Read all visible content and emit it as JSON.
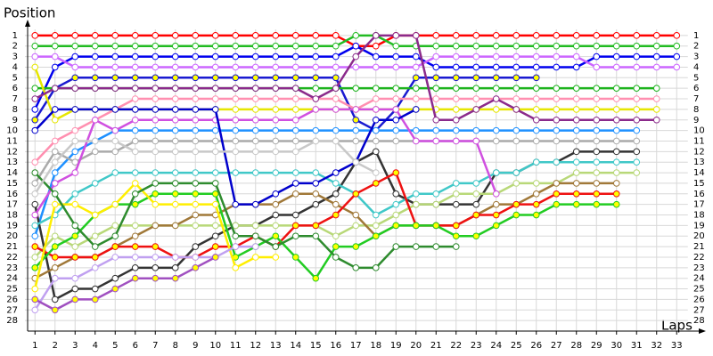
{
  "chart_data": {
    "type": "line",
    "y_label": "Position",
    "x_label": "Laps",
    "xlim": [
      0.5,
      34
    ],
    "ylim": [
      29,
      0
    ],
    "xticks": [
      1,
      2,
      3,
      4,
      5,
      6,
      7,
      8,
      9,
      10,
      11,
      12,
      13,
      14,
      15,
      16,
      17,
      18,
      19,
      20,
      21,
      22,
      23,
      24,
      25,
      26,
      27,
      28,
      29,
      30,
      31,
      32,
      33
    ],
    "yticks": [
      1,
      2,
      3,
      4,
      5,
      6,
      7,
      8,
      9,
      10,
      11,
      12,
      13,
      14,
      15,
      16,
      17,
      18,
      19,
      20,
      21,
      22,
      23,
      24,
      25,
      26,
      27,
      28
    ],
    "grid": true,
    "series": [
      {
        "color": "#ff0000",
        "values": [
          1,
          1,
          1,
          1,
          1,
          1,
          1,
          1,
          1,
          1,
          1,
          1,
          1,
          1,
          1,
          1,
          2,
          2,
          1,
          1,
          1,
          1,
          1,
          1,
          1,
          1,
          1,
          1,
          1,
          1,
          1,
          1,
          1
        ]
      },
      {
        "color": "#22bb22",
        "values": [
          2,
          2,
          2,
          2,
          2,
          2,
          2,
          2,
          2,
          2,
          2,
          2,
          2,
          2,
          2,
          2,
          1,
          1,
          2,
          2,
          2,
          2,
          2,
          2,
          2,
          2,
          2,
          2,
          2,
          2,
          2,
          2,
          2
        ]
      },
      {
        "color": "#0000ee",
        "values": [
          8,
          4,
          3,
          3,
          3,
          3,
          3,
          3,
          3,
          3,
          3,
          3,
          3,
          3,
          3,
          3,
          2,
          3,
          3,
          3,
          4,
          4,
          4,
          4,
          4,
          4,
          4,
          4,
          3,
          3,
          3,
          3,
          3
        ]
      },
      {
        "color": "#cc66ff",
        "values": [
          3,
          3,
          4,
          4,
          4,
          4,
          4,
          4,
          4,
          4,
          4,
          4,
          4,
          4,
          4,
          4,
          4,
          4,
          4,
          4,
          3,
          3,
          3,
          3,
          3,
          3,
          3,
          3,
          4,
          4,
          4,
          4,
          4
        ]
      },
      {
        "color": "#1a1ad0",
        "marker_color": "#ffff00",
        "values": [
          9,
          6,
          5,
          5,
          5,
          5,
          5,
          5,
          5,
          5,
          5,
          5,
          5,
          5,
          5,
          5,
          9,
          10,
          8,
          5,
          5,
          5,
          5,
          5,
          5,
          5,
          null,
          null,
          null,
          null,
          null,
          null,
          null
        ]
      },
      {
        "color": "#1db31d",
        "values": [
          6,
          6,
          6,
          6,
          6,
          6,
          6,
          6,
          6,
          6,
          6,
          6,
          6,
          6,
          6,
          6,
          6,
          6,
          6,
          6,
          6,
          6,
          6,
          6,
          6,
          6,
          6,
          6,
          6,
          6,
          6,
          6,
          null
        ]
      },
      {
        "color": "#ff8fb0",
        "values": [
          13,
          11,
          10,
          9,
          8,
          7,
          7,
          7,
          7,
          7,
          7,
          7,
          7,
          7,
          7,
          7,
          8,
          7,
          7,
          7,
          7,
          7,
          7,
          7,
          7,
          7,
          7,
          7,
          7,
          7,
          7,
          7,
          null
        ]
      },
      {
        "color": "#e6e600",
        "values": [
          4,
          9,
          8,
          8,
          8,
          8,
          8,
          8,
          8,
          8,
          8,
          8,
          8,
          8,
          8,
          8,
          8,
          8,
          8,
          8,
          8,
          8,
          8,
          8,
          8,
          8,
          8,
          8,
          8,
          8,
          8,
          8,
          null
        ]
      },
      {
        "color": "#8b2a8b",
        "values": [
          7,
          6,
          6,
          6,
          6,
          6,
          6,
          6,
          6,
          6,
          6,
          6,
          6,
          6,
          7,
          6,
          3,
          1,
          1,
          1,
          9,
          9,
          8,
          7,
          8,
          9,
          9,
          9,
          9,
          9,
          9,
          9,
          null
        ]
      },
      {
        "color": "#1e90ff",
        "values": [
          20,
          14,
          12,
          11,
          10,
          10,
          10,
          10,
          10,
          10,
          10,
          10,
          10,
          10,
          10,
          10,
          10,
          10,
          10,
          10,
          10,
          10,
          10,
          10,
          10,
          10,
          10,
          10,
          10,
          10,
          10,
          null,
          null
        ]
      },
      {
        "color": "#aaaaaa",
        "values": [
          15,
          12,
          13,
          12,
          12,
          11,
          11,
          11,
          11,
          11,
          11,
          11,
          11,
          11,
          11,
          11,
          11,
          11,
          11,
          11,
          11,
          11,
          11,
          11,
          11,
          11,
          11,
          11,
          11,
          11,
          11,
          null,
          null
        ]
      },
      {
        "color": "#333333",
        "values": [
          17,
          26,
          25,
          25,
          24,
          23,
          23,
          23,
          21,
          20,
          19,
          19,
          18,
          18,
          17,
          16,
          13,
          12,
          16,
          17,
          17,
          17,
          17,
          14,
          14,
          13,
          13,
          12,
          12,
          12,
          12,
          null,
          null
        ]
      },
      {
        "color": "#40c8c8",
        "values": [
          19,
          18,
          16,
          15,
          14,
          14,
          14,
          14,
          14,
          14,
          14,
          14,
          14,
          14,
          14,
          15,
          16,
          18,
          17,
          16,
          16,
          15,
          15,
          14,
          14,
          13,
          13,
          13,
          13,
          13,
          13,
          null,
          null
        ]
      },
      {
        "color": "#b8d878",
        "values": [
          22,
          20,
          21,
          20,
          19,
          19,
          19,
          19,
          19,
          19,
          19,
          19,
          19,
          19,
          19,
          20,
          19,
          19,
          18,
          17,
          17,
          16,
          16,
          16,
          15,
          15,
          15,
          14,
          14,
          14,
          14,
          null,
          null
        ]
      },
      {
        "color": "#a07838",
        "values": [
          24,
          23,
          22,
          22,
          21,
          20,
          19,
          19,
          18,
          18,
          17,
          17,
          17,
          16,
          16,
          17,
          18,
          20,
          19,
          19,
          19,
          19,
          18,
          17,
          17,
          16,
          15,
          15,
          15,
          15,
          null,
          null,
          null
        ]
      },
      {
        "color": "#ee1111",
        "marker_color": "#ffff00",
        "values": [
          21,
          22,
          22,
          22,
          21,
          21,
          21,
          22,
          22,
          21,
          21,
          20,
          21,
          19,
          19,
          18,
          16,
          15,
          14,
          19,
          19,
          19,
          18,
          18,
          17,
          17,
          16,
          16,
          16,
          16,
          null,
          null,
          null
        ]
      },
      {
        "color": "#22cc22",
        "marker_color": "#ffff00",
        "values": [
          23,
          21,
          20,
          18,
          17,
          17,
          16,
          16,
          16,
          16,
          22,
          21,
          20,
          22,
          24,
          21,
          21,
          20,
          19,
          19,
          19,
          20,
          20,
          19,
          18,
          18,
          17,
          17,
          17,
          17,
          null,
          null,
          null
        ]
      },
      {
        "color": "#d050e0",
        "values": [
          18,
          15,
          14,
          9,
          10,
          9,
          9,
          9,
          9,
          9,
          9,
          9,
          9,
          9,
          8,
          8,
          8,
          8,
          8,
          11,
          11,
          11,
          11,
          16,
          null,
          null,
          null,
          null,
          null,
          null,
          null,
          null,
          null
        ]
      },
      {
        "color": "#0000cc",
        "values": [
          10,
          8,
          8,
          8,
          8,
          8,
          8,
          8,
          8,
          8,
          17,
          17,
          16,
          15,
          15,
          14,
          13,
          9,
          9,
          8,
          null,
          null,
          null,
          null,
          null,
          null,
          null,
          null,
          null,
          null,
          null,
          null,
          null
        ]
      },
      {
        "color": "#ffee00",
        "values": [
          25,
          17,
          17,
          18,
          17,
          15,
          17,
          17,
          17,
          17,
          23,
          22,
          22,
          null,
          null,
          null,
          null,
          null,
          null,
          null,
          null,
          null,
          null,
          null,
          null,
          null,
          null,
          null,
          null,
          null,
          null,
          null,
          null
        ]
      },
      {
        "color": "#2e8b2e",
        "values": [
          14,
          16,
          19,
          21,
          20,
          16,
          15,
          15,
          15,
          15,
          20,
          20,
          21,
          20,
          20,
          22,
          23,
          23,
          21,
          21,
          21,
          21,
          null,
          null,
          null,
          null,
          null,
          null,
          null,
          null,
          null,
          null,
          null
        ]
      },
      {
        "color": "#c0a0f0",
        "values": [
          27,
          24,
          24,
          23,
          22,
          22,
          22,
          22,
          22,
          22,
          21,
          21,
          null,
          null,
          null,
          null,
          null,
          null,
          null,
          null,
          null,
          null,
          null,
          null,
          null,
          null,
          null,
          null,
          null,
          null,
          null,
          null,
          null
        ]
      },
      {
        "color": "#a050c0",
        "marker_color": "#ffff00",
        "values": [
          26,
          27,
          26,
          26,
          25,
          24,
          24,
          24,
          23,
          22,
          null,
          null,
          null,
          null,
          null,
          null,
          null,
          null,
          null,
          null,
          null,
          null,
          null,
          null,
          null,
          null,
          null,
          null,
          null,
          null,
          null,
          null,
          null
        ]
      },
      {
        "color": "#c8c8c8",
        "values": [
          16,
          13,
          11,
          11,
          11,
          12,
          12,
          12,
          12,
          12,
          12,
          12,
          12,
          12,
          11,
          11,
          13,
          14,
          null,
          null,
          null,
          null,
          null,
          null,
          null,
          null,
          null,
          null,
          null,
          null,
          null,
          null,
          null
        ]
      }
    ]
  }
}
